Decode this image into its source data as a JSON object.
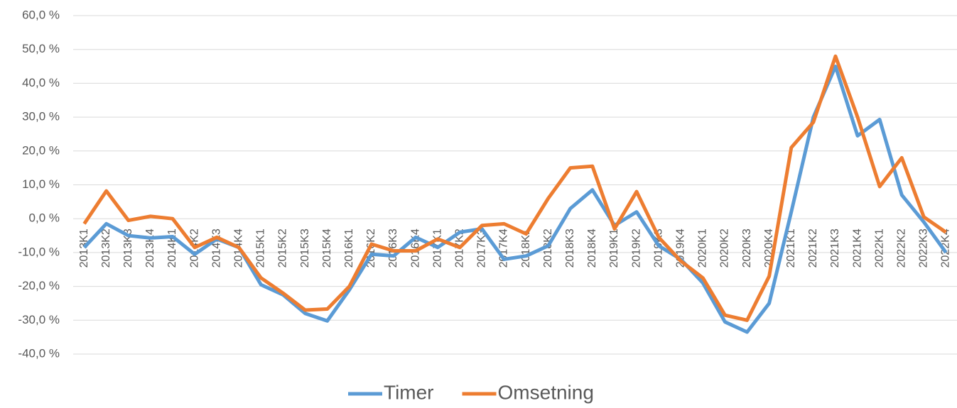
{
  "chart_data": {
    "type": "line",
    "categories": [
      "2013K1",
      "2013K2",
      "2013K3",
      "2013K4",
      "2014K1",
      "2014K2",
      "2014K3",
      "2014K4",
      "2015K1",
      "2015K2",
      "2015K3",
      "2015K4",
      "2016K1",
      "2016K2",
      "2016K3",
      "2016K4",
      "2017K1",
      "2017K2",
      "2017K3",
      "2017K4",
      "2018K1",
      "2018K2",
      "2018K3",
      "2018K4",
      "2019K1",
      "2019K2",
      "2019K3",
      "2019K4",
      "2020K1",
      "2020K2",
      "2020K3",
      "2020K4",
      "2021K1",
      "2021K2",
      "2021K3",
      "2021K4",
      "2022K1",
      "2022K2",
      "2022K3",
      "2022K4"
    ],
    "series": [
      {
        "name": "Timer",
        "color": "#5b9bd5",
        "values": [
          -8.5,
          -1.5,
          -5,
          -5.7,
          -5.3,
          -10.5,
          -6,
          -8.5,
          -19.5,
          -22.5,
          -28,
          -30.2,
          -21,
          -10.5,
          -11,
          -5.5,
          -8.5,
          -4,
          -3,
          -12,
          -11,
          -8,
          3,
          8.5,
          -2,
          2,
          -8,
          -12,
          -19,
          -30.5,
          -33.5,
          -25,
          2,
          30,
          45,
          24.5,
          29.3,
          7,
          -1,
          -10
        ]
      },
      {
        "name": "Omsetning",
        "color": "#ed7d31",
        "values": [
          -1.5,
          8.2,
          -0.5,
          0.7,
          0,
          -8.5,
          -5.5,
          -8.5,
          -17.5,
          -22,
          -27,
          -26.7,
          -20,
          -7.5,
          -9.5,
          -9.5,
          -6,
          -8.5,
          -2,
          -1.5,
          -4.5,
          6,
          15,
          15.5,
          -3,
          8,
          -5.5,
          -12.5,
          -17.5,
          -28.5,
          -30,
          -17,
          21,
          28.5,
          48,
          30,
          9.5,
          18,
          0.5,
          -4
        ]
      }
    ],
    "ylim": [
      -40,
      60
    ],
    "yticks": [
      {
        "value": -40,
        "label": "-40,0 %"
      },
      {
        "value": -30,
        "label": "-30,0 %"
      },
      {
        "value": -20,
        "label": "-20,0 %"
      },
      {
        "value": -10,
        "label": "-10,0 %"
      },
      {
        "value": 0,
        "label": "0,0 %"
      },
      {
        "value": 10,
        "label": "10,0 %"
      },
      {
        "value": 20,
        "label": "20,0 %"
      },
      {
        "value": 30,
        "label": "30,0 %"
      },
      {
        "value": 40,
        "label": "40,0 %"
      },
      {
        "value": 50,
        "label": "50,0 %"
      },
      {
        "value": 60,
        "label": "60,0 %"
      }
    ],
    "grid": true
  }
}
